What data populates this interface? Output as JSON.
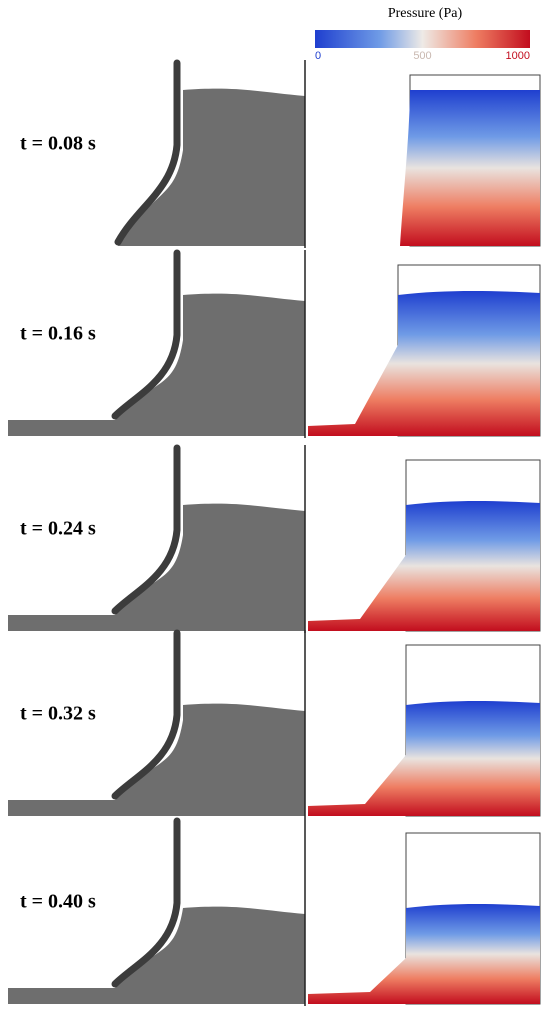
{
  "colorbar": {
    "title": "Pressure (Pa)",
    "ticks": [
      0,
      500,
      1000
    ]
  },
  "panels": [
    {
      "label": "t = 0.08 s"
    },
    {
      "label": "t = 0.16 s"
    },
    {
      "label": "t = 0.24 s"
    },
    {
      "label": "t = 0.32 s"
    },
    {
      "label": "t = 0.40 s"
    }
  ]
}
